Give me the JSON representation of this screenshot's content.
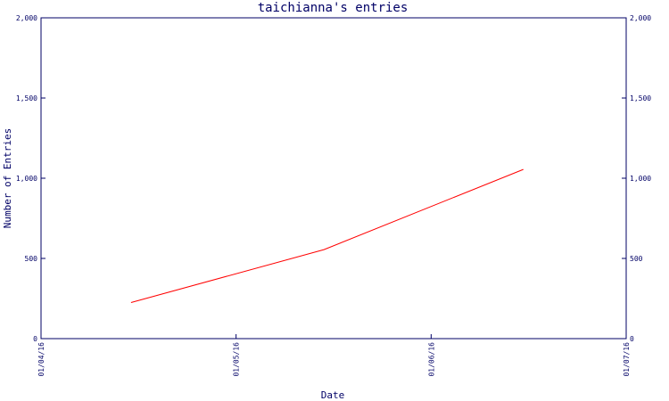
{
  "chart_data": {
    "type": "line",
    "title": "taichianna's entries",
    "xlabel": "Date",
    "ylabel": "Number of Entries",
    "x_ticks": [
      "01/04/16",
      "01/05/16",
      "01/06/16",
      "01/07/16"
    ],
    "y_ticks": [
      "0",
      "500",
      "1,000",
      "1,500",
      "2,000"
    ],
    "ylim": [
      0,
      2000
    ],
    "xlim": [
      "2016-04-01",
      "2016-07-01"
    ],
    "right_axis": true,
    "series": [
      {
        "color": "#ff0000",
        "x": [
          "2016-04-15",
          "2016-05-15",
          "2016-06-15"
        ],
        "values": [
          225,
          555,
          1055
        ]
      }
    ]
  }
}
